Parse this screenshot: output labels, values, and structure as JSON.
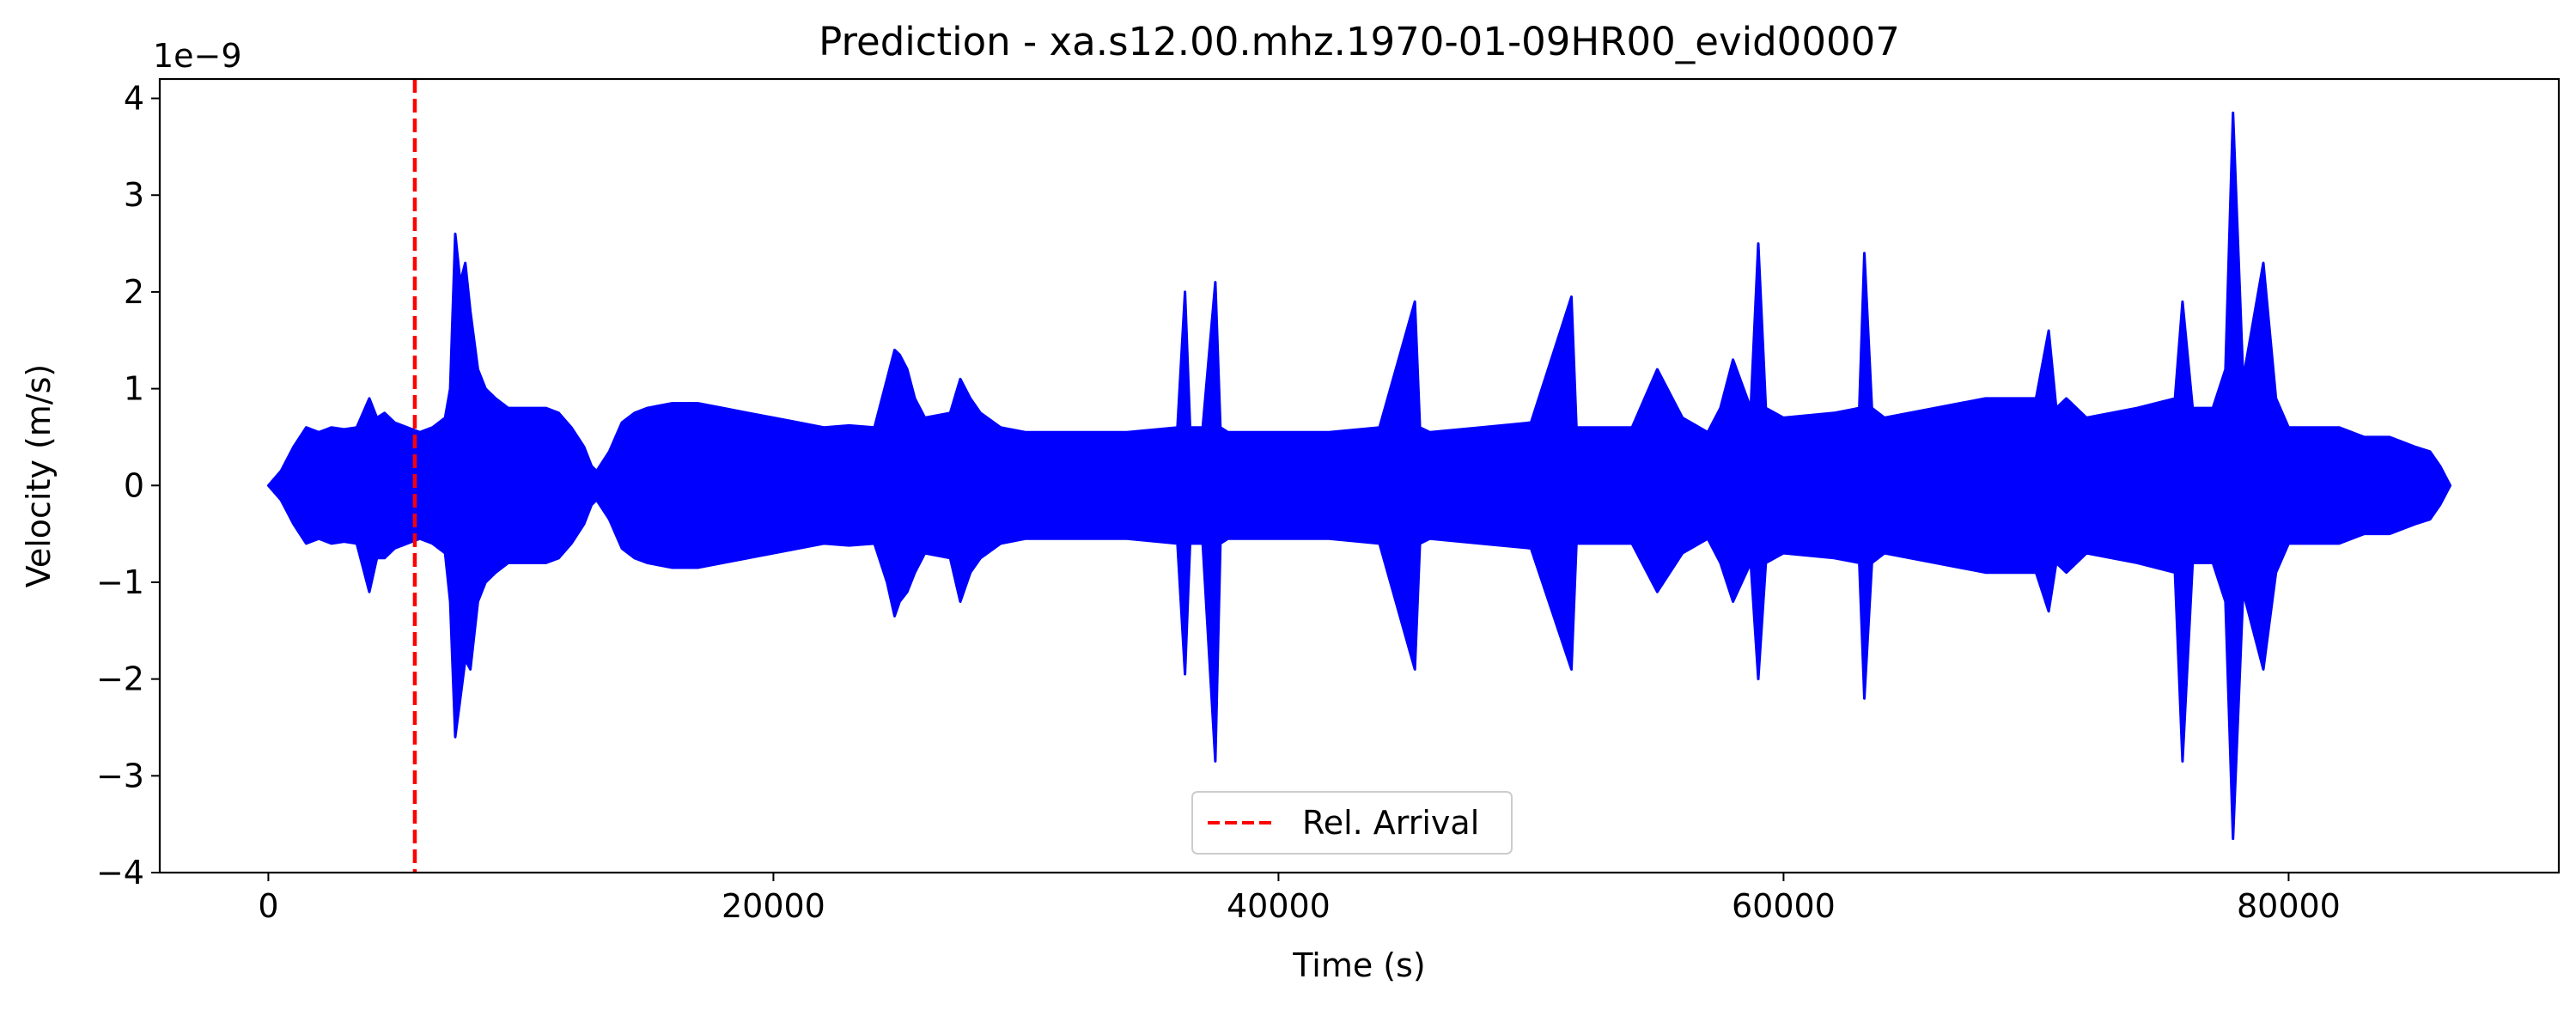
{
  "chart_data": {
    "type": "line",
    "title": "Prediction - xa.s12.00.mhz.1970-01-09HR00_evid00007",
    "xlabel": "Time (s)",
    "ylabel": "Velocity (m/s)",
    "y_offset_label": "1e−9",
    "xlim": [
      -4300,
      90700
    ],
    "ylim": [
      -4.0,
      4.2
    ],
    "x_ticks": [
      0,
      20000,
      40000,
      60000,
      80000
    ],
    "x_tick_labels": [
      "0",
      "20000",
      "40000",
      "60000",
      "80000"
    ],
    "y_ticks": [
      -4,
      -3,
      -2,
      -1,
      0,
      1,
      2,
      3,
      4
    ],
    "y_tick_labels": [
      "−4",
      "−3",
      "−2",
      "−1",
      "0",
      "1",
      "2",
      "3",
      "4"
    ],
    "grid": false,
    "legend": {
      "placement": "lower center",
      "entries": [
        "Rel. Arrival"
      ]
    },
    "series": [
      {
        "color": "#0000ff",
        "envelope": {
          "x": [
            0,
            500,
            1000,
            1500,
            2000,
            2500,
            3000,
            3500,
            4000,
            4300,
            4600,
            5000,
            5500,
            6000,
            6500,
            7000,
            7200,
            7400,
            7600,
            7800,
            8000,
            8300,
            8600,
            9000,
            9500,
            10000,
            10500,
            11000,
            11500,
            12000,
            12500,
            12800,
            13000,
            13500,
            14000,
            14500,
            15000,
            16000,
            17000,
            18000,
            19000,
            20000,
            21000,
            22000,
            23000,
            24000,
            24500,
            24800,
            25000,
            25300,
            25600,
            26000,
            27000,
            27400,
            27800,
            28200,
            29000,
            30000,
            32000,
            34000,
            36000,
            36300,
            36500,
            37000,
            37500,
            37700,
            38000,
            40000,
            42000,
            44000,
            45400,
            45600,
            46000,
            48000,
            50000,
            51600,
            51800,
            52000,
            54000,
            55000,
            56000,
            57000,
            57500,
            58000,
            58700,
            59000,
            59300,
            60000,
            62000,
            63000,
            63200,
            63500,
            64000,
            66000,
            68000,
            70000,
            70500,
            70800,
            71200,
            72000,
            74000,
            75500,
            75800,
            76200,
            77000,
            77500,
            77800,
            78200,
            79000,
            79500,
            80000,
            81000,
            82000,
            83000,
            84000,
            85000,
            85600,
            86000,
            86400
          ],
          "upper": [
            0,
            0.15,
            0.4,
            0.6,
            0.55,
            0.6,
            0.58,
            0.6,
            0.9,
            0.7,
            0.75,
            0.65,
            0.6,
            0.55,
            0.6,
            0.7,
            1.0,
            2.6,
            2.1,
            2.3,
            1.8,
            1.2,
            1.0,
            0.9,
            0.8,
            0.8,
            0.8,
            0.8,
            0.75,
            0.6,
            0.4,
            0.2,
            0.15,
            0.35,
            0.65,
            0.75,
            0.8,
            0.85,
            0.85,
            0.8,
            0.75,
            0.7,
            0.65,
            0.6,
            0.62,
            0.6,
            1.1,
            1.4,
            1.35,
            1.2,
            0.9,
            0.7,
            0.75,
            1.1,
            0.9,
            0.75,
            0.6,
            0.55,
            0.55,
            0.55,
            0.6,
            2.0,
            0.6,
            0.6,
            2.1,
            0.6,
            0.55,
            0.55,
            0.55,
            0.6,
            1.9,
            0.6,
            0.55,
            0.6,
            0.65,
            1.95,
            0.6,
            0.6,
            0.6,
            1.2,
            0.7,
            0.55,
            0.8,
            1.3,
            0.8,
            2.5,
            0.8,
            0.7,
            0.75,
            0.8,
            2.4,
            0.8,
            0.7,
            0.8,
            0.9,
            0.9,
            1.6,
            0.8,
            0.9,
            0.7,
            0.8,
            0.9,
            1.9,
            0.8,
            0.8,
            1.2,
            3.85,
            1.1,
            2.3,
            0.9,
            0.6,
            0.6,
            0.6,
            0.5,
            0.5,
            0.4,
            0.35,
            0.2,
            0.0
          ],
          "lower": [
            0,
            -0.15,
            -0.4,
            -0.6,
            -0.55,
            -0.6,
            -0.58,
            -0.6,
            -1.1,
            -0.75,
            -0.75,
            -0.65,
            -0.6,
            -0.55,
            -0.6,
            -0.7,
            -1.2,
            -2.6,
            -2.2,
            -1.8,
            -1.9,
            -1.2,
            -1.0,
            -0.9,
            -0.8,
            -0.8,
            -0.8,
            -0.8,
            -0.75,
            -0.6,
            -0.4,
            -0.2,
            -0.15,
            -0.35,
            -0.65,
            -0.75,
            -0.8,
            -0.85,
            -0.85,
            -0.8,
            -0.75,
            -0.7,
            -0.65,
            -0.6,
            -0.62,
            -0.6,
            -1.0,
            -1.35,
            -1.2,
            -1.1,
            -0.9,
            -0.7,
            -0.75,
            -1.2,
            -0.9,
            -0.75,
            -0.6,
            -0.55,
            -0.55,
            -0.55,
            -0.6,
            -1.95,
            -0.6,
            -0.6,
            -2.85,
            -0.6,
            -0.55,
            -0.55,
            -0.55,
            -0.6,
            -1.9,
            -0.6,
            -0.55,
            -0.6,
            -0.65,
            -1.9,
            -0.6,
            -0.6,
            -0.6,
            -1.1,
            -0.7,
            -0.55,
            -0.8,
            -1.2,
            -0.8,
            -2.0,
            -0.8,
            -0.7,
            -0.75,
            -0.8,
            -2.2,
            -0.8,
            -0.7,
            -0.8,
            -0.9,
            -0.9,
            -1.3,
            -0.8,
            -0.9,
            -0.7,
            -0.8,
            -0.9,
            -2.85,
            -0.8,
            -0.8,
            -1.2,
            -3.65,
            -1.1,
            -1.9,
            -0.9,
            -0.6,
            -0.6,
            -0.6,
            -0.5,
            -0.5,
            -0.4,
            -0.35,
            -0.2,
            0.0
          ]
        }
      }
    ],
    "annotations": [
      {
        "type": "vline",
        "x": 5800,
        "color": "#ff0000",
        "style": "dashed",
        "label": "Rel. Arrival"
      }
    ]
  }
}
